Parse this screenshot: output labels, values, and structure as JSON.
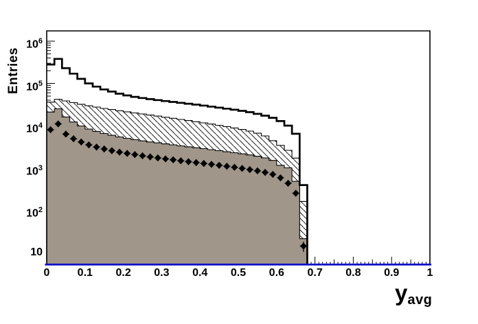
{
  "figure": {
    "background": "#ffffff",
    "colors": {
      "frame": "#000000",
      "axis_line_blue": "#0e0ec8",
      "gray_fill": "#a0968a",
      "hatch_line": "#000000",
      "open_line": "#000000",
      "marker": "#000000",
      "text": "#000000"
    }
  },
  "axes": {
    "x": {
      "title": "y",
      "subscript": "avg",
      "min": 0,
      "max": 1,
      "major_step": 0.1,
      "medium_step": 0.05,
      "minor_step": 0.01,
      "tick_labels": [
        {
          "label": "0",
          "value": 0
        },
        {
          "label": "0.1",
          "value": 0.1
        },
        {
          "label": "0.2",
          "value": 0.2
        },
        {
          "label": "0.3",
          "value": 0.3
        },
        {
          "label": "0.4",
          "value": 0.4
        },
        {
          "label": "0.5",
          "value": 0.5
        },
        {
          "label": "0.6",
          "value": 0.6
        },
        {
          "label": "0.7",
          "value": 0.7
        },
        {
          "label": "0.8",
          "value": 0.8
        },
        {
          "label": "0.9",
          "value": 0.9
        },
        {
          "label": "1",
          "value": 1
        }
      ]
    },
    "y": {
      "title": "Entries",
      "scale": "log",
      "min": 5,
      "max": 1750000,
      "tick_labels": [
        {
          "mantissa": "10",
          "exponent": "",
          "value": 10
        },
        {
          "mantissa": "10",
          "exponent": "2",
          "value": 100
        },
        {
          "mantissa": "10",
          "exponent": "3",
          "value": 1000
        },
        {
          "mantissa": "10",
          "exponent": "4",
          "value": 10000
        },
        {
          "mantissa": "10",
          "exponent": "5",
          "value": 100000
        },
        {
          "mantissa": "10",
          "exponent": "6",
          "value": 1000000
        }
      ]
    }
  },
  "chart_data": {
    "type": "bar",
    "subtype": "step-histograms-with-points-log-y",
    "title": "",
    "xlabel": "y_avg",
    "ylabel": "Entries",
    "xlim": [
      0,
      1
    ],
    "ylim": [
      5,
      1750000
    ],
    "grid": false,
    "legend": "none",
    "bin_start": 0,
    "bin_width": 0.02,
    "n_bins": 34,
    "series": [
      {
        "name": "total-open-histogram",
        "style": "open-line",
        "line_width": 2.7,
        "values": [
          280000,
          380000,
          230000,
          170000,
          128000,
          100000,
          84000,
          72000,
          64000,
          57000,
          52000,
          48000,
          45000,
          42500,
          40200,
          38200,
          36400,
          34700,
          33000,
          31400,
          29800,
          28200,
          26700,
          25200,
          23800,
          22400,
          20800,
          19000,
          17200,
          15300,
          12800,
          10000,
          6400,
          390
        ]
      },
      {
        "name": "hatched-histogram",
        "style": "hatched-fill",
        "hatch_direction": "backslash",
        "values": [
          36000,
          42000,
          38500,
          35000,
          32000,
          29500,
          27500,
          25500,
          24000,
          22500,
          21200,
          20000,
          18900,
          17800,
          16800,
          15800,
          14900,
          14000,
          13200,
          12400,
          11600,
          10900,
          10200,
          9500,
          8800,
          8100,
          7400,
          6600,
          5700,
          4400,
          3400,
          2600,
          1700,
          160
        ]
      },
      {
        "name": "solid-gray-histogram",
        "style": "solid-fill",
        "values": [
          21000,
          25000,
          16000,
          12200,
          9800,
          8300,
          7300,
          6500,
          5900,
          5400,
          5000,
          4650,
          4350,
          4100,
          3900,
          3700,
          3500,
          3320,
          3150,
          3000,
          2850,
          2700,
          2550,
          2400,
          2280,
          2150,
          2020,
          1880,
          1720,
          1500,
          1150,
          1000,
          480,
          21
        ]
      }
    ],
    "points": {
      "name": "data-points",
      "marker": "filled-diamond",
      "x_error_halfwidth": 0.01,
      "y_error": "sqrt",
      "x": [
        0.01,
        0.03,
        0.05,
        0.07,
        0.09,
        0.11,
        0.13,
        0.15,
        0.17,
        0.19,
        0.21,
        0.23,
        0.25,
        0.27,
        0.29,
        0.31,
        0.33,
        0.35,
        0.37,
        0.39,
        0.41,
        0.43,
        0.45,
        0.47,
        0.49,
        0.51,
        0.53,
        0.55,
        0.57,
        0.59,
        0.61,
        0.63,
        0.65,
        0.67
      ],
      "y": [
        8000,
        11000,
        6300,
        4900,
        4100,
        3500,
        3100,
        2800,
        2550,
        2350,
        2200,
        2060,
        1930,
        1820,
        1720,
        1630,
        1550,
        1470,
        1400,
        1330,
        1270,
        1210,
        1150,
        1090,
        1030,
        970,
        910,
        850,
        780,
        700,
        580,
        430,
        250,
        14
      ]
    }
  }
}
